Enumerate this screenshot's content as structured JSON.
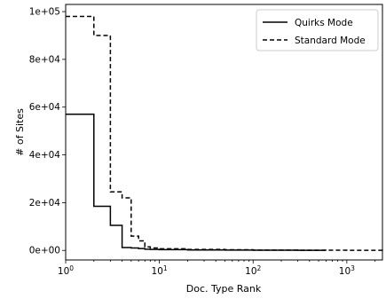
{
  "chart_data": {
    "type": "line",
    "step": "post",
    "xscale": "log",
    "xlabel": "Doc. Type Rank",
    "ylabel": "# of Sites",
    "xlim": [
      1,
      2400
    ],
    "ylim": [
      -4000,
      103000
    ],
    "xticks": [
      {
        "value": 1,
        "base": "10",
        "exp": "0"
      },
      {
        "value": 10,
        "base": "10",
        "exp": "1"
      },
      {
        "value": 100,
        "base": "10",
        "exp": "2"
      },
      {
        "value": 1000,
        "base": "10",
        "exp": "3"
      }
    ],
    "yticks": [
      {
        "value": 0,
        "label": "0e+00"
      },
      {
        "value": 20000,
        "label": "2e+04"
      },
      {
        "value": 40000,
        "label": "4e+04"
      },
      {
        "value": 60000,
        "label": "6e+04"
      },
      {
        "value": 80000,
        "label": "8e+04"
      },
      {
        "value": 100000,
        "label": "1e+05"
      }
    ],
    "legend_position": "top-right",
    "series": [
      {
        "name": "Quirks Mode",
        "style": "solid",
        "color": "#000000",
        "x": [
          1,
          2,
          3,
          4,
          5,
          6,
          7,
          8,
          10,
          20,
          50,
          100,
          300,
          600
        ],
        "y": [
          57000,
          18500,
          10500,
          1200,
          1000,
          800,
          500,
          400,
          300,
          200,
          150,
          100,
          50,
          20
        ]
      },
      {
        "name": "Standard Mode",
        "style": "dashed",
        "color": "#000000",
        "x": [
          1,
          2,
          3,
          4,
          5,
          6,
          7,
          8,
          10,
          20,
          50,
          100,
          300,
          1000,
          2400
        ],
        "y": [
          98000,
          90000,
          24500,
          22000,
          6000,
          4000,
          1500,
          1000,
          700,
          400,
          250,
          150,
          80,
          30,
          10
        ]
      }
    ]
  }
}
